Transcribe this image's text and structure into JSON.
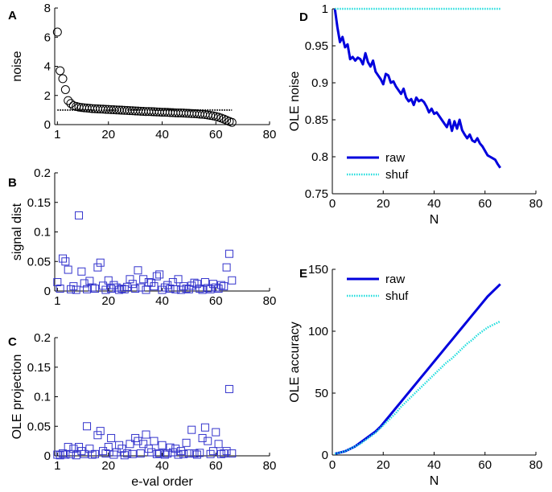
{
  "chart_data": [
    {
      "id": "A",
      "panel_label": "A",
      "type": "scatter",
      "xlabel": "",
      "ylabel": "noise",
      "xlim": [
        0,
        80
      ],
      "ylim": [
        0,
        8
      ],
      "xticks": [
        1,
        20,
        40,
        60,
        80
      ],
      "yticks": [
        0,
        2,
        4,
        6,
        8
      ],
      "marker": "circle",
      "marker_color": "#000000",
      "series": [
        {
          "name": "noise",
          "x": [
            1,
            2,
            3,
            4,
            5,
            6,
            7,
            8,
            9,
            10,
            11,
            12,
            13,
            14,
            15,
            16,
            17,
            18,
            19,
            20,
            21,
            22,
            23,
            24,
            25,
            26,
            27,
            28,
            29,
            30,
            31,
            32,
            33,
            34,
            35,
            36,
            37,
            38,
            39,
            40,
            41,
            42,
            43,
            44,
            45,
            46,
            47,
            48,
            49,
            50,
            51,
            52,
            53,
            54,
            55,
            56,
            57,
            58,
            59,
            60,
            61,
            62,
            63,
            64,
            65,
            66
          ],
          "values": [
            6.35,
            3.7,
            3.15,
            2.4,
            1.65,
            1.45,
            1.3,
            1.25,
            1.2,
            1.17,
            1.15,
            1.14,
            1.12,
            1.1,
            1.09,
            1.08,
            1.07,
            1.06,
            1.05,
            1.04,
            1.03,
            1.02,
            1.01,
            1.0,
            0.99,
            0.98,
            0.97,
            0.96,
            0.95,
            0.94,
            0.93,
            0.92,
            0.91,
            0.9,
            0.9,
            0.89,
            0.88,
            0.87,
            0.86,
            0.85,
            0.85,
            0.84,
            0.83,
            0.82,
            0.81,
            0.8,
            0.8,
            0.79,
            0.78,
            0.77,
            0.76,
            0.75,
            0.74,
            0.72,
            0.71,
            0.69,
            0.66,
            0.63,
            0.6,
            0.56,
            0.51,
            0.45,
            0.38,
            0.3,
            0.22,
            0.15
          ]
        }
      ],
      "reference_line": {
        "y": 1,
        "x_range": [
          1,
          66
        ],
        "style": "dotted",
        "color": "#000000"
      }
    },
    {
      "id": "B",
      "panel_label": "B",
      "type": "scatter",
      "xlabel": "",
      "ylabel": "signal dist",
      "xlim": [
        0,
        80
      ],
      "ylim": [
        0,
        0.2
      ],
      "xticks": [
        1,
        20,
        40,
        60,
        80
      ],
      "yticks": [
        0,
        0.05,
        0.1,
        0.15,
        0.2
      ],
      "ytick_labels": [
        "0",
        "0.05",
        "0.1",
        "0.15",
        "0.2"
      ],
      "marker": "square",
      "marker_color": "#3333cc",
      "series": [
        {
          "name": "signal dist",
          "x": [
            1,
            2,
            3,
            4,
            5,
            6,
            7,
            8,
            9,
            10,
            11,
            12,
            13,
            14,
            15,
            16,
            17,
            18,
            19,
            20,
            21,
            22,
            23,
            24,
            25,
            26,
            27,
            28,
            29,
            30,
            31,
            32,
            33,
            34,
            35,
            36,
            37,
            38,
            39,
            40,
            41,
            42,
            43,
            44,
            45,
            46,
            47,
            48,
            49,
            50,
            51,
            52,
            53,
            54,
            55,
            56,
            57,
            58,
            59,
            60,
            61,
            62,
            63,
            64,
            65,
            66
          ],
          "values": [
            0.015,
            0.004,
            0.055,
            0.05,
            0.036,
            0.003,
            0.008,
            0.002,
            0.128,
            0.033,
            0.013,
            0.003,
            0.017,
            0.006,
            0.004,
            0.04,
            0.048,
            0.009,
            0.002,
            0.018,
            0.004,
            0.01,
            0.006,
            0.002,
            0.004,
            0.003,
            0.007,
            0.02,
            0.012,
            0.004,
            0.035,
            0.006,
            0.02,
            0.002,
            0.015,
            0.014,
            0.008,
            0.025,
            0.028,
            0.002,
            0.006,
            0.01,
            0.004,
            0.015,
            0.003,
            0.02,
            0.002,
            0.008,
            0.004,
            0.003,
            0.009,
            0.014,
            0.012,
            0.004,
            0.002,
            0.015,
            0.005,
            0.003,
            0.012,
            0.006,
            0.004,
            0.01,
            0.008,
            0.04,
            0.063,
            0.018
          ]
        }
      ]
    },
    {
      "id": "C",
      "panel_label": "C",
      "type": "scatter",
      "xlabel": "e-val order",
      "ylabel": "OLE projection",
      "xlim": [
        0,
        80
      ],
      "ylim": [
        0,
        0.2
      ],
      "xticks": [
        1,
        20,
        40,
        60,
        80
      ],
      "yticks": [
        0,
        0.05,
        0.1,
        0.15,
        0.2
      ],
      "ytick_labels": [
        "0",
        "0.05",
        "0.1",
        "0.15",
        "0.2"
      ],
      "marker": "square",
      "marker_color": "#3333cc",
      "series": [
        {
          "name": "OLE projection",
          "x": [
            1,
            2,
            3,
            4,
            5,
            6,
            7,
            8,
            9,
            10,
            11,
            12,
            13,
            14,
            15,
            16,
            17,
            18,
            19,
            20,
            21,
            22,
            23,
            24,
            25,
            26,
            27,
            28,
            29,
            30,
            31,
            32,
            33,
            34,
            35,
            36,
            37,
            38,
            39,
            40,
            41,
            42,
            43,
            44,
            45,
            46,
            47,
            48,
            49,
            50,
            51,
            52,
            53,
            54,
            55,
            56,
            57,
            58,
            59,
            60,
            61,
            62,
            63,
            64,
            65,
            66
          ],
          "values": [
            0.002,
            0.001,
            0.004,
            0.002,
            0.015,
            0.003,
            0.012,
            0.001,
            0.015,
            0.008,
            0.003,
            0.05,
            0.012,
            0.002,
            0.003,
            0.035,
            0.042,
            0.008,
            0.004,
            0.015,
            0.03,
            0.002,
            0.006,
            0.018,
            0.012,
            0.001,
            0.004,
            0.02,
            0.003,
            0.03,
            0.025,
            0.004,
            0.02,
            0.036,
            0.012,
            0.006,
            0.025,
            0.003,
            0.004,
            0.018,
            0.002,
            0.004,
            0.014,
            0.006,
            0.012,
            0.002,
            0.008,
            0.003,
            0.022,
            0.004,
            0.044,
            0.004,
            0.002,
            0.005,
            0.03,
            0.048,
            0.025,
            0.003,
            0.008,
            0.04,
            0.02,
            0.003,
            0.004,
            0.008,
            0.113,
            0.004
          ]
        }
      ]
    },
    {
      "id": "D",
      "panel_label": "D",
      "type": "line",
      "xlabel": "N",
      "ylabel": "OLE noise",
      "xlim": [
        0,
        80
      ],
      "ylim": [
        0.75,
        1
      ],
      "xticks": [
        0,
        20,
        40,
        60,
        80
      ],
      "yticks": [
        0.75,
        0.8,
        0.85,
        0.9,
        0.95,
        1
      ],
      "ytick_labels": [
        "0.75",
        "0.8",
        "0.85",
        "0.9",
        "0.95",
        "1"
      ],
      "legend": {
        "position": "lower-left",
        "entries": [
          "raw",
          "shuf"
        ]
      },
      "series": [
        {
          "name": "raw",
          "color": "#0000dd",
          "style": "solid",
          "x": [
            1,
            2,
            3,
            4,
            5,
            6,
            7,
            8,
            9,
            10,
            11,
            12,
            13,
            14,
            15,
            16,
            17,
            18,
            19,
            20,
            21,
            22,
            23,
            24,
            25,
            26,
            27,
            28,
            29,
            30,
            31,
            32,
            33,
            34,
            35,
            36,
            37,
            38,
            39,
            40,
            41,
            42,
            43,
            44,
            45,
            46,
            47,
            48,
            49,
            50,
            51,
            52,
            53,
            54,
            55,
            56,
            57,
            58,
            59,
            60,
            61,
            62,
            63,
            64,
            65,
            66
          ],
          "values": [
            1.0,
            0.975,
            0.955,
            0.962,
            0.948,
            0.952,
            0.932,
            0.935,
            0.93,
            0.934,
            0.932,
            0.925,
            0.94,
            0.928,
            0.922,
            0.93,
            0.915,
            0.91,
            0.905,
            0.898,
            0.912,
            0.91,
            0.9,
            0.902,
            0.895,
            0.89,
            0.885,
            0.892,
            0.88,
            0.875,
            0.878,
            0.87,
            0.88,
            0.875,
            0.877,
            0.874,
            0.868,
            0.86,
            0.865,
            0.858,
            0.86,
            0.855,
            0.85,
            0.845,
            0.84,
            0.85,
            0.835,
            0.848,
            0.838,
            0.85,
            0.836,
            0.83,
            0.825,
            0.83,
            0.822,
            0.82,
            0.825,
            0.818,
            0.814,
            0.808,
            0.802,
            0.8,
            0.798,
            0.796,
            0.79,
            0.785
          ]
        },
        {
          "name": "shuf",
          "color": "#22dddd",
          "style": "dotted",
          "x": [
            1,
            66
          ],
          "values": [
            1.0,
            1.0
          ]
        }
      ]
    },
    {
      "id": "E",
      "panel_label": "E",
      "type": "line",
      "xlabel": "N",
      "ylabel": "OLE accuracy",
      "xlim": [
        0,
        80
      ],
      "ylim": [
        0,
        150
      ],
      "xticks": [
        0,
        20,
        40,
        60,
        80
      ],
      "yticks": [
        0,
        50,
        100,
        150
      ],
      "ytick_labels": [
        "0",
        "50",
        "100",
        "150"
      ],
      "legend": {
        "position": "top-left",
        "entries": [
          "raw",
          "shuf"
        ]
      },
      "series": [
        {
          "name": "raw",
          "color": "#0000dd",
          "style": "solid",
          "x": [
            1,
            3,
            5,
            7,
            9,
            11,
            13,
            15,
            17,
            19,
            21,
            23,
            25,
            27,
            29,
            31,
            33,
            35,
            37,
            39,
            41,
            43,
            45,
            47,
            49,
            51,
            53,
            55,
            57,
            59,
            61,
            63,
            65,
            66
          ],
          "values": [
            1,
            2,
            3,
            5,
            7,
            10,
            13,
            16,
            19,
            23,
            28,
            33,
            38,
            43,
            48,
            53,
            58,
            63,
            68,
            73,
            78,
            83,
            88,
            93,
            98,
            103,
            108,
            113,
            118,
            123,
            128,
            132,
            136,
            138
          ]
        },
        {
          "name": "shuf",
          "color": "#22dddd",
          "style": "dotted",
          "x": [
            1,
            3,
            5,
            7,
            9,
            11,
            13,
            15,
            17,
            19,
            21,
            23,
            25,
            27,
            29,
            31,
            33,
            35,
            37,
            39,
            41,
            43,
            45,
            47,
            49,
            51,
            53,
            55,
            57,
            59,
            61,
            63,
            65,
            66
          ],
          "values": [
            1,
            2,
            3,
            5,
            7,
            9,
            12,
            15,
            18,
            22,
            26,
            30,
            34,
            39,
            43,
            47,
            51,
            55,
            59,
            63,
            67,
            71,
            75,
            78,
            82,
            86,
            90,
            93,
            97,
            100,
            103,
            105,
            107,
            108
          ]
        }
      ]
    }
  ]
}
